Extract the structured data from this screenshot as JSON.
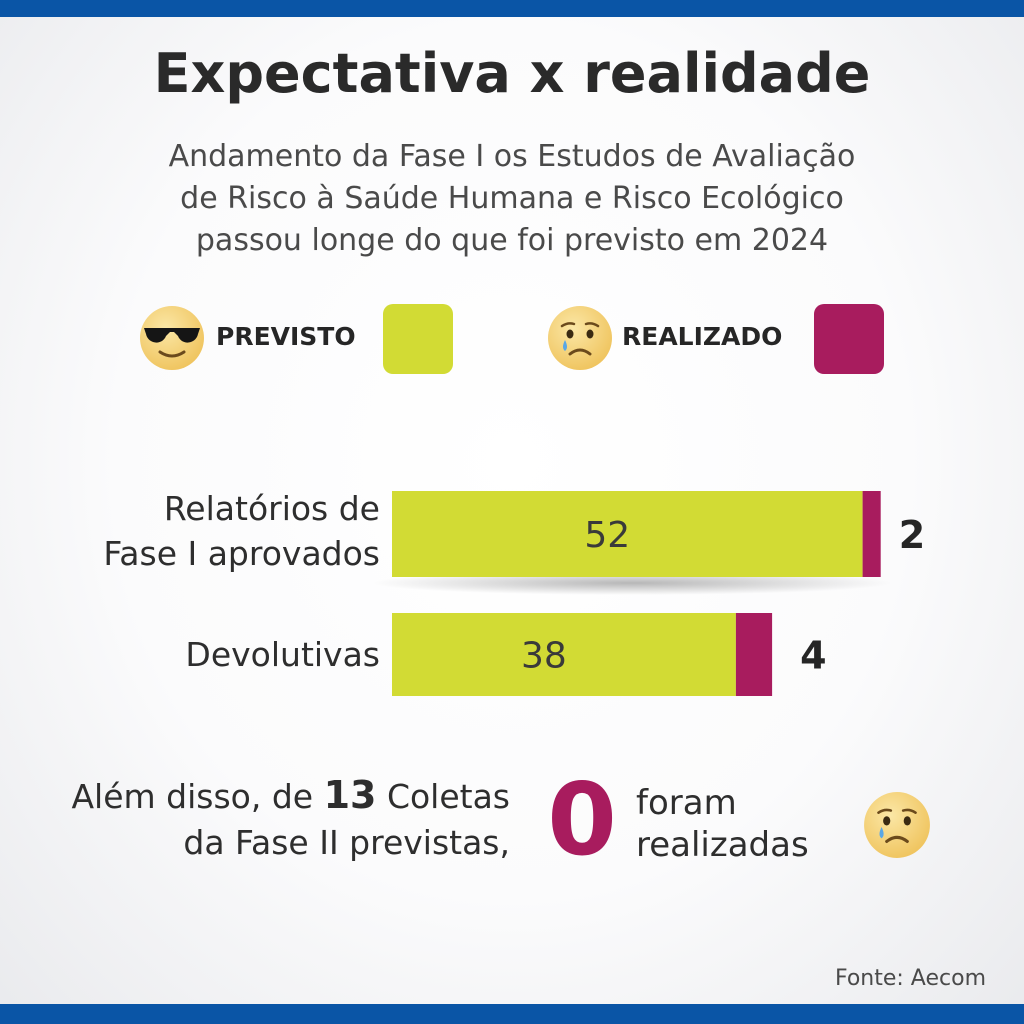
{
  "title": "Expectativa x realidade",
  "subtitle": [
    "Andamento da Fase I os Estudos de Avaliação",
    "de Risco à Saúde Humana e Risco Ecológico",
    "passou longe do que foi previsto em 2024"
  ],
  "legend": {
    "previsto": {
      "label": "PREVISTO",
      "icon": "sunglasses-face-icon",
      "color": "#d2db34"
    },
    "realizado": {
      "label": "REALIZADO",
      "icon": "crying-face-icon",
      "color": "#a81c5e"
    }
  },
  "chart_data": {
    "type": "bar",
    "orientation": "horizontal",
    "stacked": true,
    "categories": [
      [
        "Relatórios de",
        "Fase I aprovados"
      ],
      [
        "Devolutivas"
      ]
    ],
    "series": [
      {
        "name": "PREVISTO",
        "values": [
          52,
          38
        ],
        "color": "#d2db34"
      },
      {
        "name": "REALIZADO",
        "values": [
          2,
          4
        ],
        "color": "#a81c5e"
      }
    ]
  },
  "footer": {
    "line1_prefix": "Além disso, de ",
    "line1_number": "13",
    "line1_suffix": " Coletas",
    "line2": "da Fase II previstas,",
    "zero": "0",
    "right_line1": "foram",
    "right_line2": "realizadas",
    "icon": "crying-face-icon"
  },
  "source": "Fonte: Aecom",
  "colors": {
    "accent_band": "#0a55a6",
    "previsto": "#d2db34",
    "realizado": "#a81c5e"
  }
}
